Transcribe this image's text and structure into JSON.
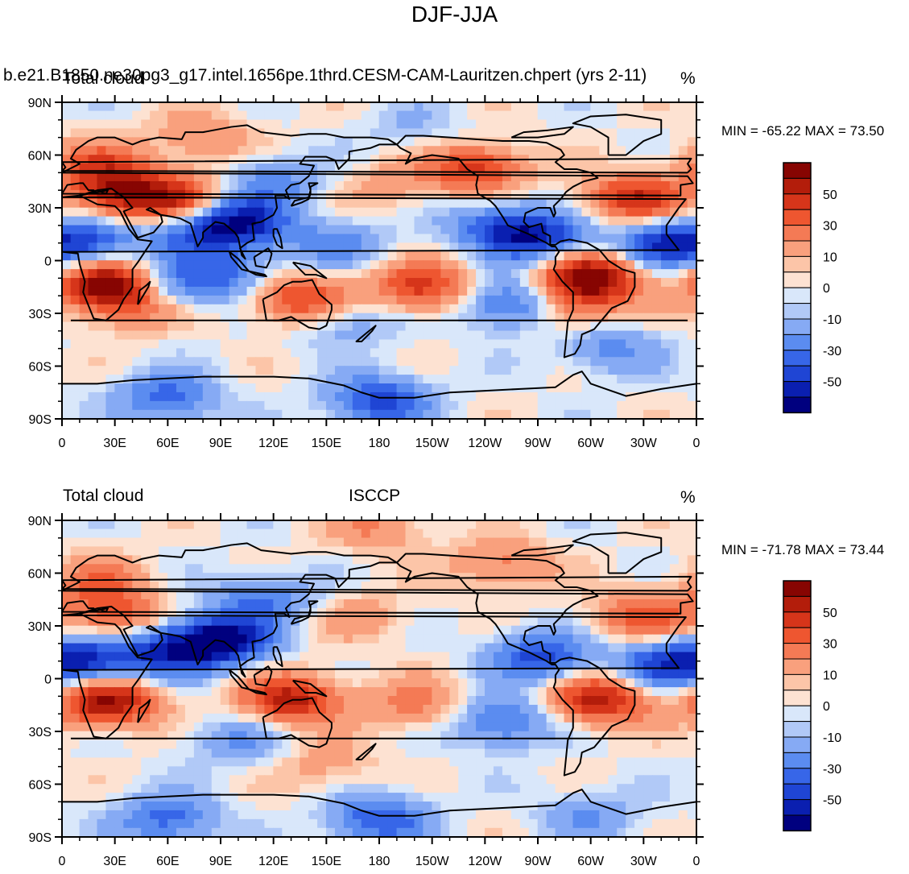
{
  "figure": {
    "title": "DJF-JJA"
  },
  "colorbar": {
    "colors": [
      "#00007f",
      "#0a1fb0",
      "#1f45d4",
      "#3766e8",
      "#5b8cf0",
      "#86aaf4",
      "#b1c9f7",
      "#d9e7fa",
      "#fde2d2",
      "#fcc5a8",
      "#f9a07d",
      "#f47a55",
      "#ee5630",
      "#d6351a",
      "#b31d0b",
      "#870502"
    ],
    "tick_labels": [
      "50",
      "30",
      "10",
      "0",
      "-10",
      "-30",
      "-50"
    ]
  },
  "chart_data": [
    {
      "type": "heatmap",
      "panel": "top",
      "title_left": "Total cloud",
      "title_center": "b.e21.B1850.ne30pg3_g17.intel.1656pe.1thrd.CESM-CAM-Lauritzen.chpert (yrs 2-11)",
      "title_right": "%",
      "min_max_text": "MIN = -65.22 MAX =  73.50",
      "min": -65.22,
      "max": 73.5,
      "x_tick_labels": [
        "0",
        "30E",
        "60E",
        "90E",
        "120E",
        "150E",
        "180",
        "150W",
        "120W",
        "90W",
        "60W",
        "30W",
        "0"
      ],
      "y_tick_labels": [
        "90N",
        "60N",
        "30N",
        "0",
        "30S",
        "60S",
        "90S"
      ],
      "xlim": [
        0,
        360
      ],
      "ylim": [
        -90,
        90
      ],
      "levels": [
        -70,
        -60,
        -50,
        -40,
        -30,
        -20,
        -10,
        -5,
        0,
        5,
        10,
        20,
        30,
        40,
        50,
        60,
        70
      ],
      "anomalies": [
        {
          "lon": 35,
          "lat": 38,
          "value": 55
        },
        {
          "lon": 68,
          "lat": 35,
          "value": 40
        },
        {
          "lon": 20,
          "lat": 55,
          "value": 30
        },
        {
          "lon": 25,
          "lat": -13,
          "value": 65
        },
        {
          "lon": 40,
          "lat": -25,
          "value": 30
        },
        {
          "lon": 135,
          "lat": -22,
          "value": 45
        },
        {
          "lon": 205,
          "lat": -15,
          "value": 45
        },
        {
          "lon": 185,
          "lat": 42,
          "value": 15
        },
        {
          "lon": 235,
          "lat": 52,
          "value": 45
        },
        {
          "lon": 325,
          "lat": 35,
          "value": 50
        },
        {
          "lon": 300,
          "lat": -10,
          "value": 70
        },
        {
          "lon": 290,
          "lat": -28,
          "value": 25
        },
        {
          "lon": 80,
          "lat": 70,
          "value": 20
        },
        {
          "lon": 100,
          "lat": 22,
          "value": -55
        },
        {
          "lon": 75,
          "lat": 15,
          "value": -30
        },
        {
          "lon": 15,
          "lat": 10,
          "value": -40
        },
        {
          "lon": 340,
          "lat": 10,
          "value": -45
        },
        {
          "lon": 270,
          "lat": 13,
          "value": -50
        },
        {
          "lon": 245,
          "lat": 20,
          "value": -30
        },
        {
          "lon": 155,
          "lat": 10,
          "value": -25
        },
        {
          "lon": 95,
          "lat": -8,
          "value": -30
        },
        {
          "lon": 255,
          "lat": -25,
          "value": -40
        },
        {
          "lon": 60,
          "lat": -15,
          "value": -30
        },
        {
          "lon": 160,
          "lat": -35,
          "value": -20
        },
        {
          "lon": 120,
          "lat": 45,
          "value": -25
        },
        {
          "lon": 180,
          "lat": -80,
          "value": -45
        },
        {
          "lon": 60,
          "lat": -78,
          "value": -35
        },
        {
          "lon": 310,
          "lat": -50,
          "value": -25
        },
        {
          "lon": 200,
          "lat": 75,
          "value": -10
        }
      ]
    },
    {
      "type": "heatmap",
      "panel": "bottom",
      "title_left": "Total cloud",
      "title_center": "ISCCP",
      "title_right": "%",
      "min_max_text": "MIN = -71.78 MAX =  73.44",
      "min": -71.78,
      "max": 73.44,
      "x_tick_labels": [
        "0",
        "30E",
        "60E",
        "90E",
        "120E",
        "150E",
        "180",
        "150W",
        "120W",
        "90W",
        "60W",
        "30W",
        "0"
      ],
      "y_tick_labels": [
        "90N",
        "60N",
        "30N",
        "0",
        "30S",
        "60S",
        "90S"
      ],
      "xlim": [
        0,
        360
      ],
      "ylim": [
        -90,
        90
      ],
      "levels": [
        -70,
        -60,
        -50,
        -40,
        -30,
        -20,
        -10,
        -5,
        0,
        5,
        10,
        20,
        30,
        40,
        50,
        60,
        70
      ],
      "anomalies": [
        {
          "lon": 30,
          "lat": 35,
          "value": 35
        },
        {
          "lon": 20,
          "lat": 55,
          "value": 25
        },
        {
          "lon": 25,
          "lat": -13,
          "value": 65
        },
        {
          "lon": 130,
          "lat": -12,
          "value": 55
        },
        {
          "lon": 200,
          "lat": -15,
          "value": 25
        },
        {
          "lon": 330,
          "lat": 35,
          "value": 35
        },
        {
          "lon": 305,
          "lat": -12,
          "value": 55
        },
        {
          "lon": 180,
          "lat": 85,
          "value": 20
        },
        {
          "lon": 250,
          "lat": 65,
          "value": 25
        },
        {
          "lon": 170,
          "lat": 35,
          "value": 15
        },
        {
          "lon": 90,
          "lat": 22,
          "value": -65
        },
        {
          "lon": 60,
          "lat": 15,
          "value": -45
        },
        {
          "lon": 15,
          "lat": 10,
          "value": -50
        },
        {
          "lon": 340,
          "lat": 8,
          "value": -40
        },
        {
          "lon": 272,
          "lat": 12,
          "value": -45
        },
        {
          "lon": 250,
          "lat": -25,
          "value": -35
        },
        {
          "lon": 115,
          "lat": 45,
          "value": -30
        },
        {
          "lon": 100,
          "lat": -35,
          "value": -20
        },
        {
          "lon": 180,
          "lat": -80,
          "value": -40
        },
        {
          "lon": 60,
          "lat": -80,
          "value": -35
        },
        {
          "lon": 300,
          "lat": -78,
          "value": -20
        },
        {
          "lon": 150,
          "lat": -50,
          "value": 15
        }
      ]
    }
  ]
}
